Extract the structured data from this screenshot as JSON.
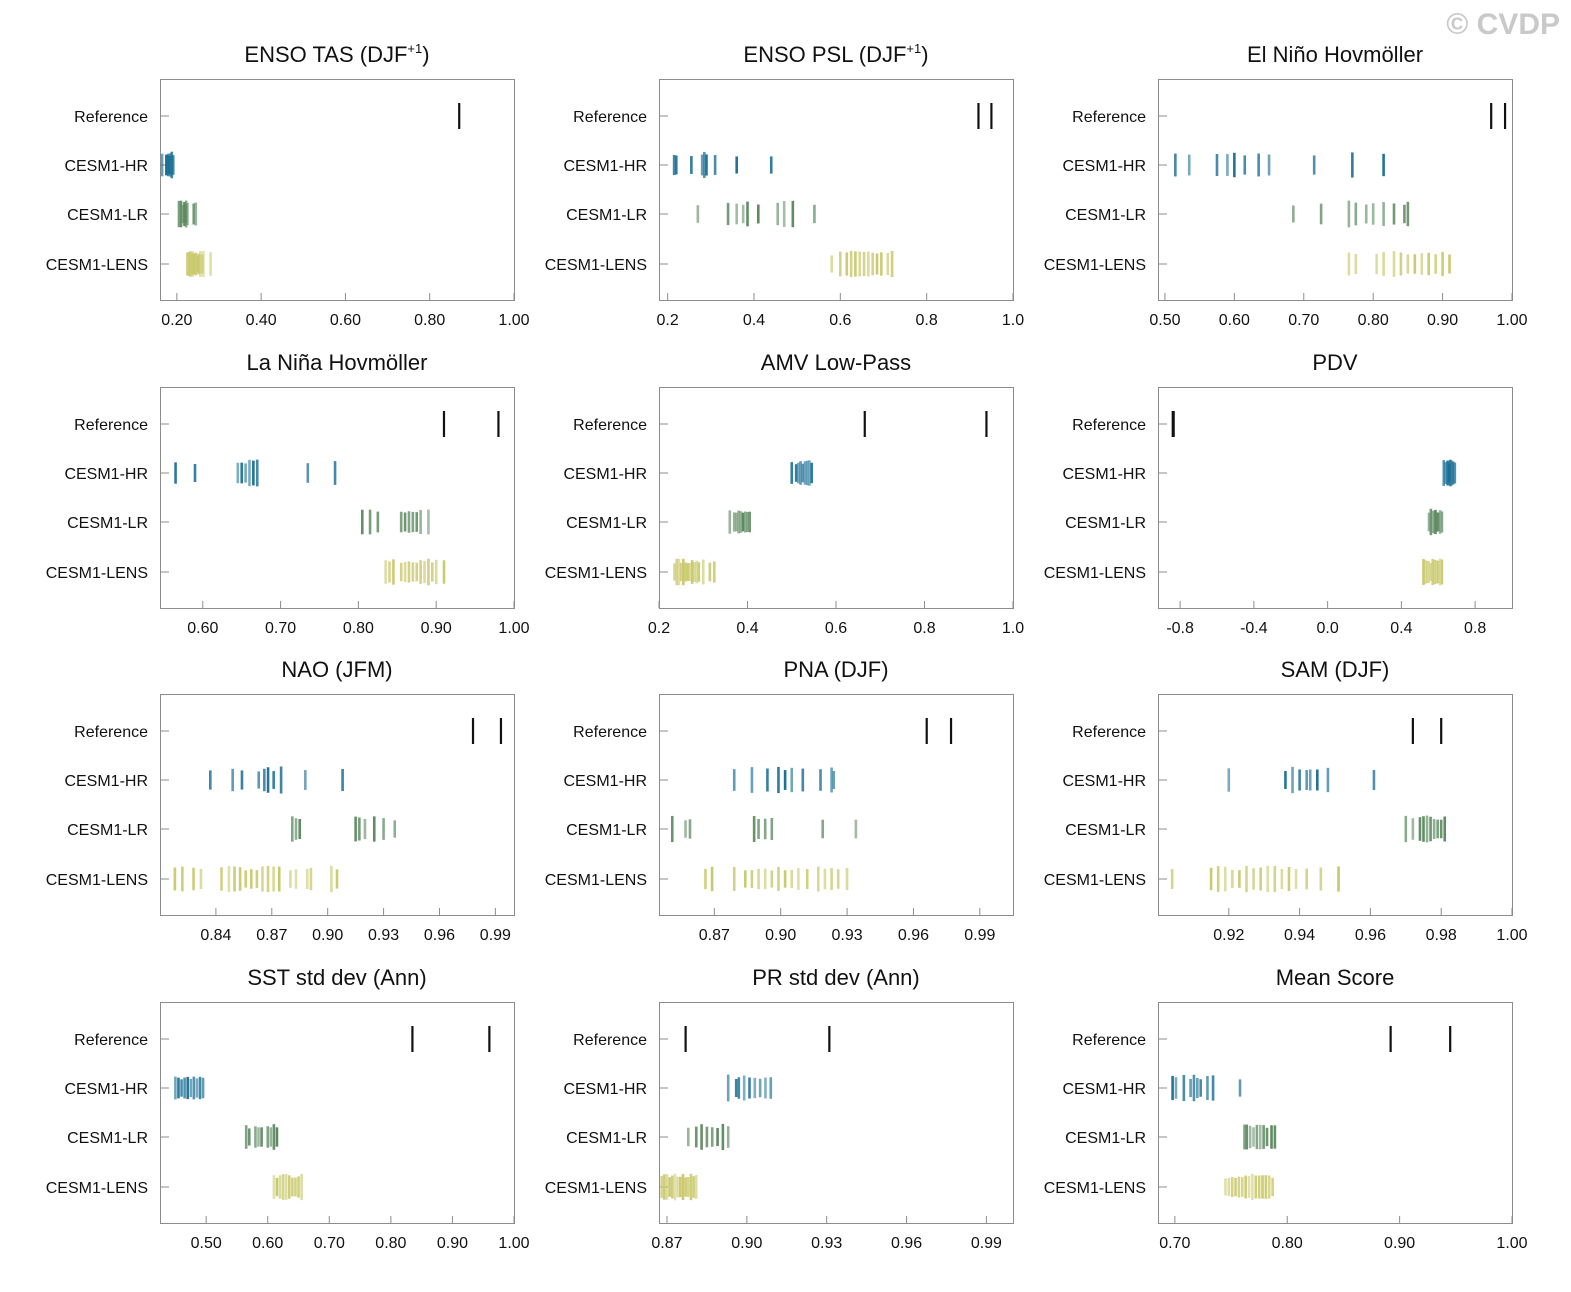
{
  "watermark": "© CVDP",
  "rows": [
    "Reference",
    "CESM1-HR",
    "CESM1-LR",
    "CESM1-LENS"
  ],
  "colors": {
    "reference": "#111111",
    "CESM1-HR": "#1a6e94",
    "CESM1-LR": "#5e8a62",
    "CESM1-LENS": "#c9c86a"
  },
  "chart_data": [
    {
      "type": "scatter",
      "title": "ENSO TAS (DJF",
      "title_sup": "+1",
      "title_suffix": ")",
      "xlim": [
        0.16,
        1.0
      ],
      "ticks": [
        0.2,
        0.4,
        0.6,
        0.8,
        1.0
      ],
      "tick_labels": [
        "0.20",
        "0.40",
        "0.60",
        "0.80",
        "1.00"
      ],
      "series": [
        {
          "name": "Reference",
          "values": [
            0.87
          ]
        },
        {
          "name": "CESM1-HR",
          "values": [
            0.165,
            0.175,
            0.178,
            0.18,
            0.182,
            0.185,
            0.188,
            0.19,
            0.192
          ]
        },
        {
          "name": "CESM1-LR",
          "values": [
            0.205,
            0.21,
            0.215,
            0.218,
            0.22,
            0.222,
            0.225,
            0.24,
            0.245
          ]
        },
        {
          "name": "CESM1-LENS",
          "values": [
            0.225,
            0.228,
            0.232,
            0.235,
            0.238,
            0.24,
            0.243,
            0.246,
            0.25,
            0.253,
            0.256,
            0.26,
            0.263,
            0.28
          ]
        }
      ]
    },
    {
      "type": "scatter",
      "title": "ENSO PSL (DJF",
      "title_sup": "+1",
      "title_suffix": ")",
      "xlim": [
        0.18,
        1.0
      ],
      "ticks": [
        0.2,
        0.4,
        0.6,
        0.8,
        1.0
      ],
      "tick_labels": [
        "0.2",
        "0.4",
        "0.6",
        "0.8",
        "1.0"
      ],
      "series": [
        {
          "name": "Reference",
          "values": [
            0.92,
            0.95
          ]
        },
        {
          "name": "CESM1-HR",
          "values": [
            0.215,
            0.22,
            0.255,
            0.28,
            0.285,
            0.29,
            0.31,
            0.36,
            0.44
          ]
        },
        {
          "name": "CESM1-LR",
          "values": [
            0.27,
            0.34,
            0.36,
            0.375,
            0.385,
            0.41,
            0.455,
            0.47,
            0.49,
            0.54
          ]
        },
        {
          "name": "CESM1-LENS",
          "values": [
            0.58,
            0.6,
            0.615,
            0.625,
            0.635,
            0.645,
            0.655,
            0.665,
            0.675,
            0.685,
            0.695,
            0.71,
            0.72
          ]
        }
      ]
    },
    {
      "type": "scatter",
      "title": "El Niño Hovmöller",
      "xlim": [
        0.49,
        1.0
      ],
      "ticks": [
        0.5,
        0.6,
        0.7,
        0.8,
        0.9,
        1.0
      ],
      "tick_labels": [
        "0.50",
        "0.60",
        "0.70",
        "0.80",
        "0.90",
        "1.00"
      ],
      "series": [
        {
          "name": "Reference",
          "values": [
            0.97,
            0.99
          ]
        },
        {
          "name": "CESM1-HR",
          "values": [
            0.515,
            0.535,
            0.575,
            0.59,
            0.6,
            0.615,
            0.635,
            0.65,
            0.715,
            0.77,
            0.815
          ]
        },
        {
          "name": "CESM1-LR",
          "values": [
            0.685,
            0.725,
            0.765,
            0.775,
            0.79,
            0.8,
            0.815,
            0.83,
            0.845,
            0.85
          ]
        },
        {
          "name": "CESM1-LENS",
          "values": [
            0.765,
            0.775,
            0.805,
            0.815,
            0.83,
            0.84,
            0.85,
            0.86,
            0.87,
            0.88,
            0.89,
            0.9,
            0.91
          ]
        }
      ]
    },
    {
      "type": "scatter",
      "title": "La Niña Hovmöller",
      "xlim": [
        0.545,
        1.0
      ],
      "ticks": [
        0.6,
        0.7,
        0.8,
        0.9,
        1.0
      ],
      "tick_labels": [
        "0.60",
        "0.70",
        "0.80",
        "0.90",
        "1.00"
      ],
      "series": [
        {
          "name": "Reference",
          "values": [
            0.91,
            0.98
          ]
        },
        {
          "name": "CESM1-HR",
          "values": [
            0.565,
            0.59,
            0.645,
            0.65,
            0.655,
            0.66,
            0.665,
            0.67,
            0.735,
            0.77
          ]
        },
        {
          "name": "CESM1-LR",
          "values": [
            0.805,
            0.815,
            0.825,
            0.855,
            0.86,
            0.865,
            0.87,
            0.875,
            0.88,
            0.89
          ]
        },
        {
          "name": "CESM1-LENS",
          "values": [
            0.835,
            0.84,
            0.845,
            0.855,
            0.86,
            0.865,
            0.87,
            0.875,
            0.88,
            0.885,
            0.89,
            0.895,
            0.9,
            0.91
          ]
        }
      ]
    },
    {
      "type": "scatter",
      "title": "AMV Low-Pass",
      "xlim": [
        0.2,
        1.0
      ],
      "ticks": [
        0.2,
        0.4,
        0.6,
        0.8,
        1.0
      ],
      "tick_labels": [
        "0.2",
        "0.4",
        "0.6",
        "0.8",
        "1.0"
      ],
      "series": [
        {
          "name": "Reference",
          "values": [
            0.665,
            0.94
          ]
        },
        {
          "name": "CESM1-HR",
          "values": [
            0.5,
            0.51,
            0.515,
            0.52,
            0.525,
            0.53,
            0.535,
            0.54,
            0.545
          ]
        },
        {
          "name": "CESM1-LR",
          "values": [
            0.36,
            0.37,
            0.375,
            0.38,
            0.385,
            0.39,
            0.395,
            0.4,
            0.405
          ]
        },
        {
          "name": "CESM1-LENS",
          "values": [
            0.235,
            0.24,
            0.245,
            0.25,
            0.255,
            0.26,
            0.265,
            0.27,
            0.275,
            0.28,
            0.285,
            0.29,
            0.3,
            0.315,
            0.325
          ]
        }
      ]
    },
    {
      "type": "scatter",
      "title": "PDV",
      "xlim": [
        -0.92,
        1.0
      ],
      "ticks": [
        -0.8,
        -0.4,
        0.0,
        0.4,
        0.8
      ],
      "tick_labels": [
        "-0.8",
        "-0.4",
        "0.0",
        "0.4",
        "0.8"
      ],
      "series": [
        {
          "name": "Reference",
          "values": [
            -0.84,
            -0.835
          ]
        },
        {
          "name": "CESM1-HR",
          "values": [
            0.63,
            0.64,
            0.65,
            0.655,
            0.66,
            0.665,
            0.67,
            0.68,
            0.69
          ]
        },
        {
          "name": "CESM1-LR",
          "values": [
            0.55,
            0.56,
            0.57,
            0.58,
            0.585,
            0.59,
            0.6,
            0.61,
            0.62
          ]
        },
        {
          "name": "CESM1-LENS",
          "values": [
            0.52,
            0.53,
            0.54,
            0.55,
            0.56,
            0.57,
            0.58,
            0.59,
            0.6,
            0.61,
            0.62
          ]
        }
      ]
    },
    {
      "type": "scatter",
      "title": "NAO (JFM)",
      "xlim": [
        0.81,
        1.0
      ],
      "ticks": [
        0.84,
        0.87,
        0.9,
        0.93,
        0.96,
        0.99
      ],
      "tick_labels": [
        "0.84",
        "0.87",
        "0.90",
        "0.93",
        "0.96",
        "0.99"
      ],
      "series": [
        {
          "name": "Reference",
          "values": [
            0.978,
            0.993
          ]
        },
        {
          "name": "CESM1-HR",
          "values": [
            0.837,
            0.849,
            0.854,
            0.863,
            0.866,
            0.868,
            0.871,
            0.875,
            0.888,
            0.908
          ]
        },
        {
          "name": "CESM1-LR",
          "values": [
            0.881,
            0.883,
            0.885,
            0.915,
            0.917,
            0.92,
            0.925,
            0.93,
            0.936
          ]
        },
        {
          "name": "CESM1-LENS",
          "values": [
            0.818,
            0.822,
            0.828,
            0.832,
            0.843,
            0.847,
            0.85,
            0.853,
            0.856,
            0.859,
            0.862,
            0.865,
            0.868,
            0.871,
            0.874,
            0.88,
            0.883,
            0.889,
            0.891,
            0.902,
            0.905
          ]
        }
      ]
    },
    {
      "type": "scatter",
      "title": "PNA (DJF)",
      "xlim": [
        0.845,
        1.005
      ],
      "ticks": [
        0.87,
        0.9,
        0.93,
        0.96,
        0.99
      ],
      "tick_labels": [
        "0.87",
        "0.90",
        "0.93",
        "0.96",
        "0.99"
      ],
      "series": [
        {
          "name": "Reference",
          "values": [
            0.966,
            0.977
          ]
        },
        {
          "name": "CESM1-HR",
          "values": [
            0.879,
            0.887,
            0.894,
            0.899,
            0.902,
            0.905,
            0.91,
            0.918,
            0.923,
            0.924
          ]
        },
        {
          "name": "CESM1-LR",
          "values": [
            0.851,
            0.857,
            0.859,
            0.888,
            0.89,
            0.893,
            0.896,
            0.919,
            0.934
          ]
        },
        {
          "name": "CESM1-LENS",
          "values": [
            0.866,
            0.869,
            0.879,
            0.884,
            0.887,
            0.89,
            0.893,
            0.896,
            0.899,
            0.902,
            0.905,
            0.908,
            0.912,
            0.917,
            0.92,
            0.923,
            0.926,
            0.93
          ]
        }
      ]
    },
    {
      "type": "scatter",
      "title": "SAM (DJF)",
      "xlim": [
        0.9,
        1.0
      ],
      "ticks": [
        0.92,
        0.94,
        0.96,
        0.98,
        1.0
      ],
      "tick_labels": [
        "0.92",
        "0.94",
        "0.96",
        "0.98",
        "1.00"
      ],
      "series": [
        {
          "name": "Reference",
          "values": [
            0.972,
            0.98
          ]
        },
        {
          "name": "CESM1-HR",
          "values": [
            0.92,
            0.936,
            0.938,
            0.94,
            0.942,
            0.943,
            0.945,
            0.948,
            0.961
          ]
        },
        {
          "name": "CESM1-LR",
          "values": [
            0.97,
            0.972,
            0.974,
            0.975,
            0.976,
            0.977,
            0.978,
            0.979,
            0.98,
            0.981
          ]
        },
        {
          "name": "CESM1-LENS",
          "values": [
            0.904,
            0.915,
            0.917,
            0.919,
            0.921,
            0.923,
            0.925,
            0.927,
            0.929,
            0.931,
            0.933,
            0.935,
            0.937,
            0.939,
            0.942,
            0.946,
            0.951
          ]
        }
      ]
    },
    {
      "type": "scatter",
      "title": "SST std dev (Ann)",
      "xlim": [
        0.425,
        1.0
      ],
      "ticks": [
        0.5,
        0.6,
        0.7,
        0.8,
        0.9,
        1.0
      ],
      "tick_labels": [
        "0.50",
        "0.60",
        "0.70",
        "0.80",
        "0.90",
        "1.00"
      ],
      "series": [
        {
          "name": "Reference",
          "values": [
            0.835,
            0.96
          ]
        },
        {
          "name": "CESM1-HR",
          "values": [
            0.45,
            0.455,
            0.46,
            0.465,
            0.47,
            0.475,
            0.48,
            0.485,
            0.49,
            0.495
          ]
        },
        {
          "name": "CESM1-LR",
          "values": [
            0.565,
            0.57,
            0.58,
            0.585,
            0.59,
            0.6,
            0.605,
            0.61,
            0.615
          ]
        },
        {
          "name": "CESM1-LENS",
          "values": [
            0.61,
            0.615,
            0.62,
            0.625,
            0.63,
            0.635,
            0.64,
            0.645,
            0.65,
            0.655
          ]
        }
      ]
    },
    {
      "type": "scatter",
      "title": "PR std dev (Ann)",
      "xlim": [
        0.867,
        1.0
      ],
      "ticks": [
        0.87,
        0.9,
        0.93,
        0.96,
        0.99
      ],
      "tick_labels": [
        "0.87",
        "0.90",
        "0.93",
        "0.96",
        "0.99"
      ],
      "series": [
        {
          "name": "Reference",
          "values": [
            0.877,
            0.931
          ]
        },
        {
          "name": "CESM1-HR",
          "values": [
            0.893,
            0.896,
            0.897,
            0.899,
            0.901,
            0.903,
            0.905,
            0.907,
            0.909
          ]
        },
        {
          "name": "CESM1-LR",
          "values": [
            0.878,
            0.881,
            0.883,
            0.885,
            0.887,
            0.889,
            0.891,
            0.893
          ]
        },
        {
          "name": "CESM1-LENS",
          "values": [
            0.868,
            0.869,
            0.87,
            0.871,
            0.872,
            0.873,
            0.874,
            0.875,
            0.876,
            0.877,
            0.878,
            0.879,
            0.88,
            0.881
          ]
        }
      ]
    },
    {
      "type": "scatter",
      "title": "Mean Score",
      "xlim": [
        0.685,
        1.0
      ],
      "ticks": [
        0.7,
        0.8,
        0.9,
        1.0
      ],
      "tick_labels": [
        "0.70",
        "0.80",
        "0.90",
        "1.00"
      ],
      "series": [
        {
          "name": "Reference",
          "values": [
            0.892,
            0.945
          ]
        },
        {
          "name": "CESM1-HR",
          "values": [
            0.698,
            0.701,
            0.708,
            0.714,
            0.717,
            0.72,
            0.723,
            0.729,
            0.734,
            0.758
          ]
        },
        {
          "name": "CESM1-LR",
          "values": [
            0.762,
            0.764,
            0.767,
            0.77,
            0.773,
            0.776,
            0.779,
            0.782,
            0.786,
            0.789
          ]
        },
        {
          "name": "CESM1-LENS",
          "values": [
            0.745,
            0.748,
            0.751,
            0.754,
            0.757,
            0.76,
            0.763,
            0.766,
            0.769,
            0.772,
            0.775,
            0.778,
            0.781,
            0.784,
            0.787
          ]
        }
      ]
    }
  ]
}
